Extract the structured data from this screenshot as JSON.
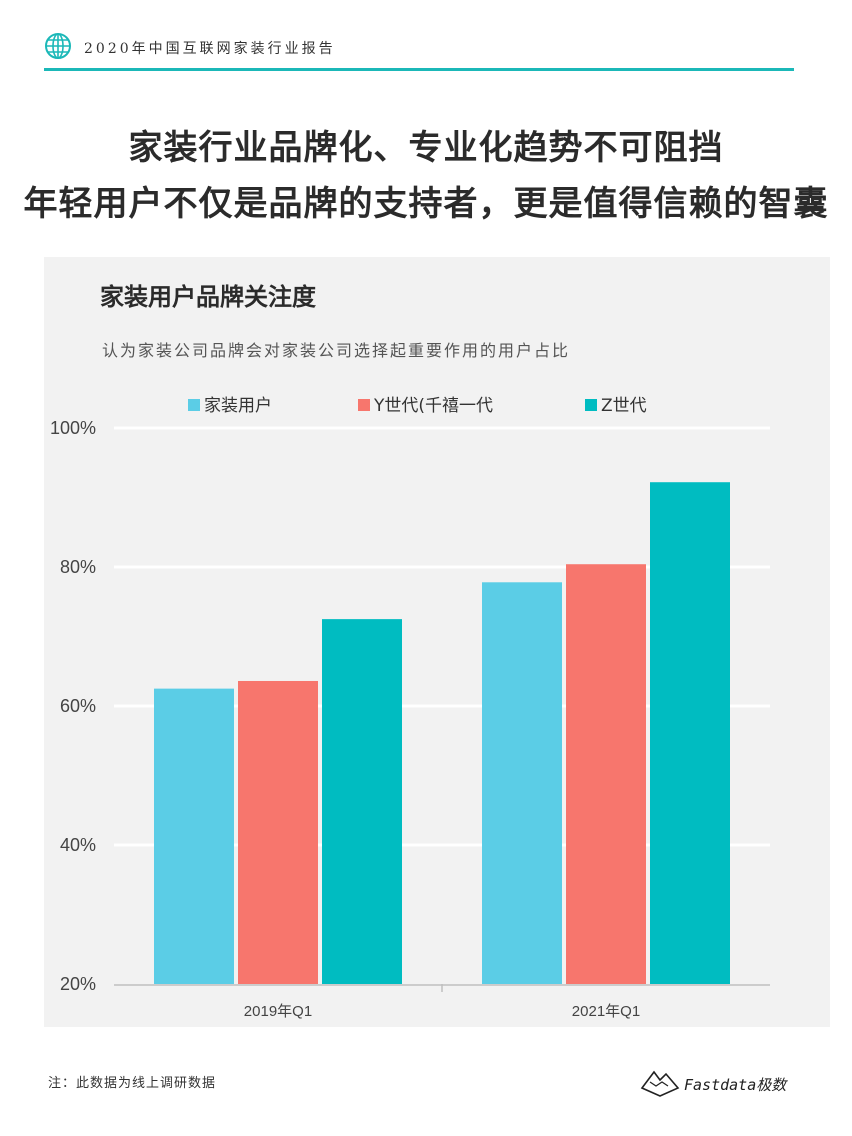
{
  "header": {
    "report_title": "2020年中国互联网家装行业报告",
    "accent": "#1bb8b8"
  },
  "headline": {
    "line1": "家装行业品牌化、专业化趋势不可阻挡",
    "line2": "年轻用户不仅是品牌的支持者，更是值得信赖的智囊"
  },
  "chart": {
    "title": "家装用户品牌关注度",
    "subtitle": "认为家装公司品牌会对家装公司选择起重要作用的用户占比"
  },
  "chart_data": {
    "type": "bar",
    "categories": [
      "2019年Q1",
      "2021年Q1"
    ],
    "series": [
      {
        "name": "家装用户",
        "values": [
          62.5,
          77.8
        ],
        "color": "#5bcde6"
      },
      {
        "name": "Y世代(千禧一代",
        "values": [
          63.6,
          80.4
        ],
        "color": "#f7766d"
      },
      {
        "name": "Z世代",
        "values": [
          72.5,
          92.2
        ],
        "color": "#00bcc1"
      }
    ],
    "ylim": [
      20,
      100
    ],
    "yticks": [
      "20%",
      "40%",
      "60%",
      "80%",
      "100%"
    ],
    "grid": true,
    "legend_position": "top"
  },
  "footer": {
    "note": "注：此数据为线上调研数据",
    "brand": "Fastdata极数"
  }
}
